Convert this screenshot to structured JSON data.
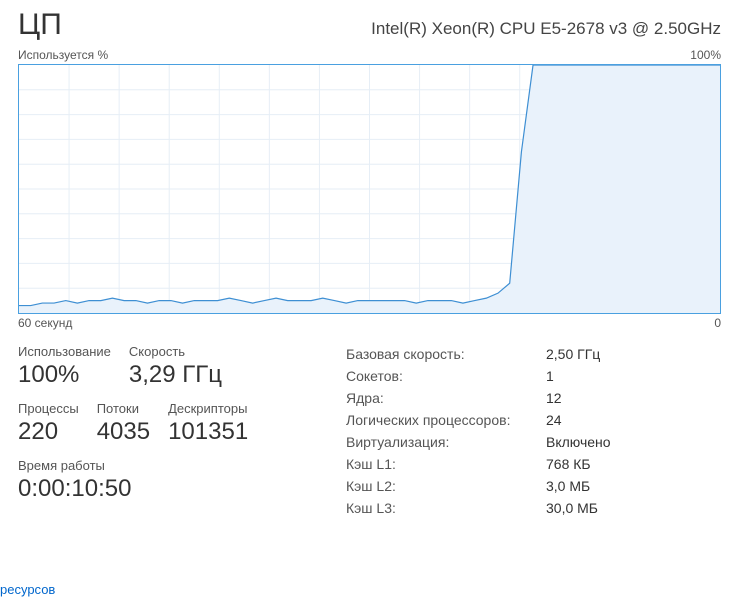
{
  "header": {
    "title": "ЦП",
    "subtitle": "Intel(R) Xeon(R) CPU E5-2678 v3 @ 2.50GHz"
  },
  "chart": {
    "top_left_label": "Используется %",
    "top_right_label": "100%",
    "bottom_left_label": "60 секунд",
    "bottom_right_label": "0",
    "type": "area",
    "xlim": [
      0,
      60
    ],
    "ylim": [
      0,
      100
    ],
    "grid_rows": 10,
    "grid_cols": 14,
    "border_color": "#4aa0e0",
    "grid_color": "#e6eef6",
    "line_color": "#3e8fd3",
    "fill_color": "#e9f2fb",
    "background_color": "#ffffff",
    "series": [
      3,
      3,
      4,
      4,
      5,
      4,
      5,
      5,
      6,
      5,
      5,
      4,
      5,
      5,
      4,
      5,
      5,
      5,
      6,
      5,
      4,
      5,
      6,
      5,
      5,
      5,
      6,
      5,
      4,
      5,
      5,
      5,
      5,
      5,
      4,
      5,
      5,
      5,
      4,
      5,
      6,
      8,
      12,
      65,
      100,
      100,
      100,
      100,
      100,
      100,
      100,
      100,
      100,
      100,
      100,
      100,
      100,
      100,
      100,
      100,
      100
    ]
  },
  "stats_left": {
    "utilization": {
      "label": "Использование",
      "value": "100%"
    },
    "speed": {
      "label": "Скорость",
      "value": "3,29 ГГц"
    },
    "processes": {
      "label": "Процессы",
      "value": "220"
    },
    "threads": {
      "label": "Потоки",
      "value": "4035"
    },
    "handles": {
      "label": "Дескрипторы",
      "value": "101351"
    },
    "uptime": {
      "label": "Время работы",
      "value": "0:00:10:50"
    }
  },
  "stats_right": {
    "base_speed": {
      "label": "Базовая скорость:",
      "value": "2,50 ГГц"
    },
    "sockets": {
      "label": "Сокетов:",
      "value": "1"
    },
    "cores": {
      "label": "Ядра:",
      "value": "12"
    },
    "logical": {
      "label": "Логических процессоров:",
      "value": "24"
    },
    "virtualization": {
      "label": "Виртуализация:",
      "value": "Включено"
    },
    "l1": {
      "label": "Кэш L1:",
      "value": "768 КБ"
    },
    "l2": {
      "label": "Кэш L2:",
      "value": "3,0 МБ"
    },
    "l3": {
      "label": "Кэш L3:",
      "value": "30,0 МБ"
    }
  },
  "footer": {
    "link_fragment": "ресурсов"
  }
}
